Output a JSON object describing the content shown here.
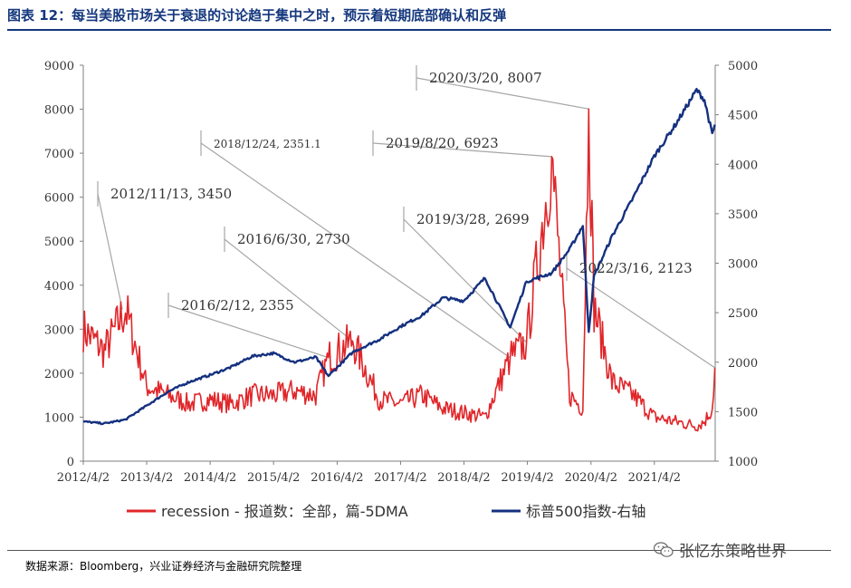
{
  "figure_title": "图表 12：每当美股市场关于衰退的讨论趋于集中之时，预示着短期底部确认和反弹",
  "source_note": "数据来源：Bloomberg，兴业证券经济与金融研究院整理",
  "watermark": {
    "icon": "wechat-icon",
    "text": "张忆东策略世界"
  },
  "colors": {
    "title": "#14377d",
    "recession": "#e0262a",
    "sp500": "#14307f",
    "leader": "#a6a6a6",
    "axis": "#7f7f7f"
  },
  "chart_data": {
    "type": "line",
    "x": [
      "2012/4/2",
      "2012/8/1",
      "2012/12/1",
      "2013/4/1",
      "2013/8/1",
      "2013/12/1",
      "2014/4/1",
      "2014/8/1",
      "2014/12/1",
      "2015/4/1",
      "2015/8/1",
      "2015/12/1",
      "2016/2/12",
      "2016/6/30",
      "2016/12/1",
      "2017/4/1",
      "2017/8/1",
      "2017/12/1",
      "2018/4/1",
      "2018/8/1",
      "2018/12/24",
      "2019/3/28",
      "2019/8/20",
      "2019/12/1",
      "2020/2/15",
      "2020/3/20",
      "2020/4/20",
      "2020/8/1",
      "2020/12/1",
      "2021/4/1",
      "2021/8/1",
      "2021/12/1",
      "2022/1/15",
      "2022/3/1",
      "2022/3/16"
    ],
    "x_ticks": [
      "2012/4/2",
      "2013/4/2",
      "2014/4/2",
      "2015/4/2",
      "2016/4/2",
      "2017/4/2",
      "2018/4/2",
      "2019/4/2",
      "2020/4/2",
      "2021/4/2"
    ],
    "series": [
      {
        "name": "recession - 报道数：全部，篇-5DMA",
        "axis": "left",
        "values": [
          3000,
          2500,
          3450,
          1700,
          1500,
          1300,
          1400,
          1300,
          1500,
          1500,
          1600,
          1500,
          2355,
          2730,
          1400,
          1300,
          1500,
          1200,
          1100,
          1000,
          2351.1,
          2699,
          6923,
          1500,
          1200,
          8007,
          3500,
          1800,
          1500,
          1000,
          900,
          800,
          900,
          1200,
          2123
        ]
      },
      {
        "name": "标普500指数-右轴",
        "axis": "right",
        "values": [
          1400,
          1380,
          1420,
          1560,
          1700,
          1800,
          1870,
          1950,
          2060,
          2090,
          2000,
          2050,
          1860,
          2100,
          2230,
          2360,
          2470,
          2650,
          2620,
          2850,
          2351,
          2815,
          2900,
          3140,
          3380,
          2305,
          2870,
          3270,
          3660,
          4080,
          4400,
          4750,
          4650,
          4300,
          4400
        ]
      }
    ],
    "annotations": [
      {
        "label": "2012/11/13, 3450",
        "x": "2012/11/13",
        "y": 3450
      },
      {
        "label": "2016/2/12, 2355",
        "x": "2016/2/12",
        "y": 2355
      },
      {
        "label": "2016/6/30, 2730",
        "x": "2016/6/30",
        "y": 2730
      },
      {
        "label": "2018/12/24, 2351.1",
        "x": "2018/12/24",
        "y": 2351.1
      },
      {
        "label": "2019/3/28, 2699",
        "x": "2019/3/28",
        "y": 2699
      },
      {
        "label": "2019/8/20, 6923",
        "x": "2019/8/20",
        "y": 6923
      },
      {
        "label": "2020/3/20, 8007",
        "x": "2020/3/20",
        "y": 8007
      },
      {
        "label": "2022/3/16, 2123",
        "x": "2022/3/16",
        "y": 2123
      }
    ],
    "left_axis": {
      "min": 0,
      "max": 9000,
      "ticks": [
        "0",
        "1000",
        "2000",
        "3000",
        "4000",
        "5000",
        "6000",
        "7000",
        "8000",
        "9000"
      ]
    },
    "right_axis": {
      "min": 1000,
      "max": 5000,
      "ticks": [
        "1000",
        "1500",
        "2000",
        "2500",
        "3000",
        "3500",
        "4000",
        "4500",
        "5000"
      ]
    },
    "legend_position": "bottom",
    "grid": false
  }
}
